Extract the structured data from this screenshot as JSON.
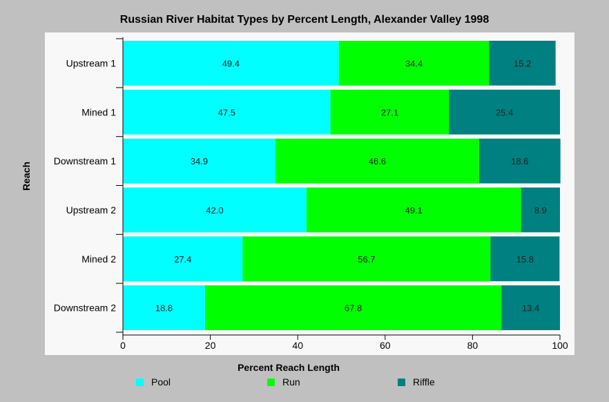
{
  "chart_data": {
    "type": "bar",
    "orientation": "horizontal",
    "stacked": true,
    "title": "Russian River Habitat Types by Percent Length, Alexander Valley 1998",
    "xlabel": "Percent Reach Length",
    "ylabel": "Reach",
    "categories": [
      "Upstream 1",
      "Mined 1",
      "Downstream 1",
      "Upstream 2",
      "Mined 2",
      "Downstream 2"
    ],
    "series": [
      {
        "name": "Pool",
        "color": "#00ffff",
        "values": [
          49.4,
          47.5,
          34.9,
          42.0,
          27.4,
          18.8
        ]
      },
      {
        "name": "Run",
        "color": "#00ff00",
        "values": [
          34.4,
          27.1,
          46.6,
          49.1,
          56.7,
          67.8
        ]
      },
      {
        "name": "Riffle",
        "color": "#008080",
        "values": [
          15.2,
          25.4,
          18.6,
          8.9,
          15.8,
          13.4
        ]
      }
    ],
    "data_labels": [
      [
        "49.4",
        "47.5",
        "34.9",
        "42.0",
        "27.4",
        "18.8"
      ],
      [
        "34.4",
        "27.1",
        "46.6",
        "49.1",
        "56.7",
        "67.8"
      ],
      [
        "15.2",
        "25.4",
        "18.6",
        "8.9",
        "15.8",
        "13.4"
      ]
    ],
    "xlim": [
      0,
      100
    ],
    "xticks": [
      "0",
      "20",
      "40",
      "60",
      "80",
      "100"
    ],
    "grid": false,
    "legend": "bottom"
  }
}
